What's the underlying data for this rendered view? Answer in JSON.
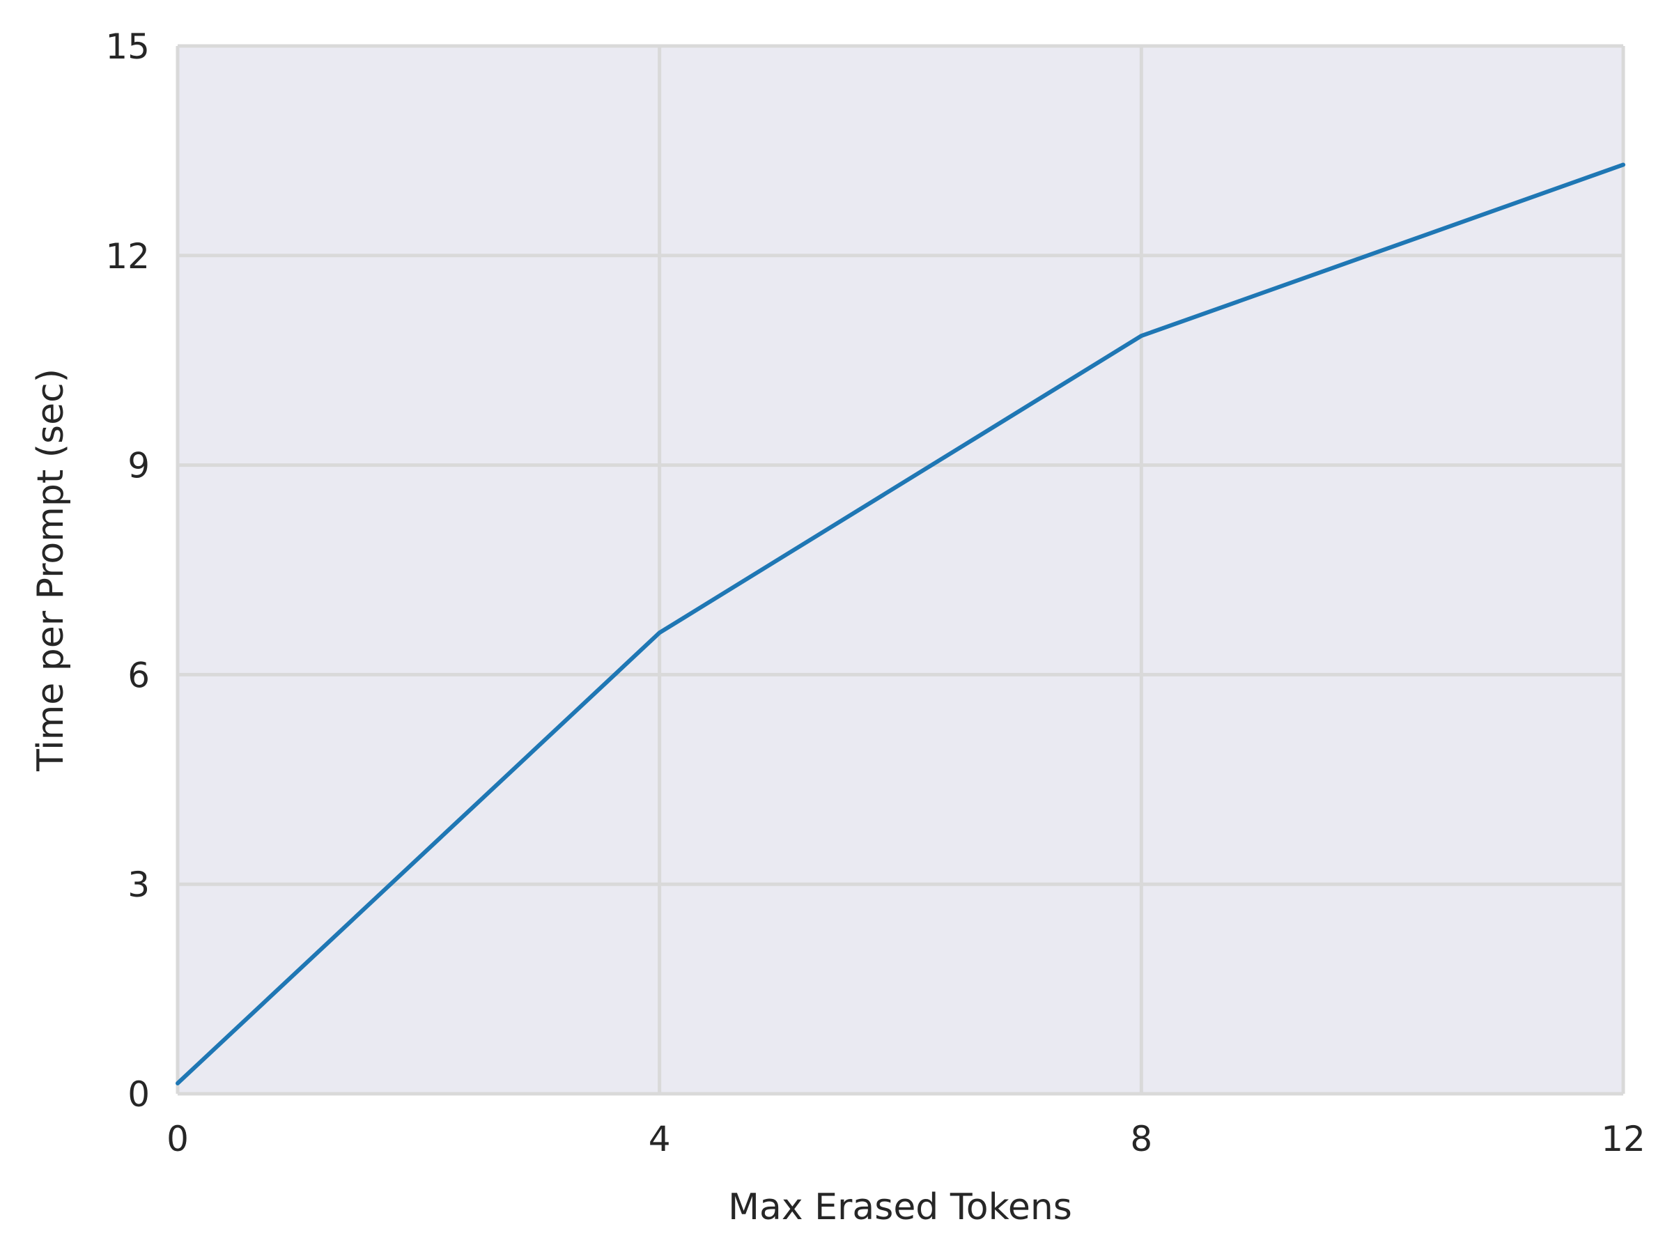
{
  "chart_data": {
    "type": "line",
    "title": "",
    "xlabel": "Max Erased Tokens",
    "ylabel": "Time per Prompt (sec)",
    "xlim": [
      0,
      12
    ],
    "ylim": [
      0,
      15
    ],
    "xticks": [
      0,
      4,
      8,
      12
    ],
    "yticks": [
      0,
      3,
      6,
      9,
      12,
      15
    ],
    "grid": true,
    "legend": "none",
    "series": [
      {
        "x": [
          0,
          4,
          8,
          12
        ],
        "y": [
          0.15,
          6.6,
          10.85,
          13.3
        ],
        "color": "#1f77b4"
      }
    ],
    "colors": {
      "plot_background": "#eaeaf2",
      "grid": "#d9d9d9",
      "text": "#262626"
    }
  }
}
